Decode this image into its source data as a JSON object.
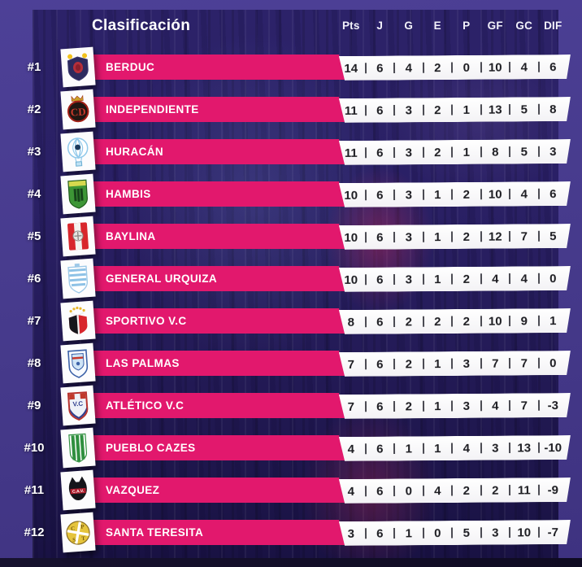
{
  "chart_data": {
    "type": "table",
    "title": "Clasificación",
    "columns": [
      "Pts",
      "J",
      "G",
      "E",
      "P",
      "GF",
      "GC",
      "DIF"
    ],
    "rows": [
      {
        "rank": "#1",
        "team": "BERDUC",
        "crest": "berduc",
        "values": [
          14,
          6,
          4,
          2,
          0,
          10,
          4,
          6
        ]
      },
      {
        "rank": "#2",
        "team": "INDEPENDIENTE",
        "crest": "independiente",
        "values": [
          11,
          6,
          3,
          2,
          1,
          13,
          5,
          8
        ]
      },
      {
        "rank": "#3",
        "team": "HURACÁN",
        "crest": "huracan",
        "values": [
          11,
          6,
          3,
          2,
          1,
          8,
          5,
          3
        ]
      },
      {
        "rank": "#4",
        "team": "HAMBIS",
        "crest": "hambis",
        "values": [
          10,
          6,
          3,
          1,
          2,
          10,
          4,
          6
        ]
      },
      {
        "rank": "#5",
        "team": "BAYLINA",
        "crest": "baylina",
        "values": [
          10,
          6,
          3,
          1,
          2,
          12,
          7,
          5
        ]
      },
      {
        "rank": "#6",
        "team": "GENERAL URQUIZA",
        "crest": "general-urquiza",
        "values": [
          10,
          6,
          3,
          1,
          2,
          4,
          4,
          0
        ]
      },
      {
        "rank": "#7",
        "team": "SPORTIVO V.C",
        "crest": "sportivo-vc",
        "values": [
          8,
          6,
          2,
          2,
          2,
          10,
          9,
          1
        ]
      },
      {
        "rank": "#8",
        "team": "LAS PALMAS",
        "crest": "las-palmas",
        "values": [
          7,
          6,
          2,
          1,
          3,
          7,
          7,
          0
        ]
      },
      {
        "rank": "#9",
        "team": "ATLÉTICO V.C",
        "crest": "atletico-vc",
        "values": [
          7,
          6,
          2,
          1,
          3,
          4,
          7,
          -3
        ]
      },
      {
        "rank": "#10",
        "team": "PUEBLO CAZES",
        "crest": "pueblo-cazes",
        "values": [
          4,
          6,
          1,
          1,
          4,
          3,
          13,
          -10
        ]
      },
      {
        "rank": "#11",
        "team": "VAZQUEZ",
        "crest": "vazquez",
        "values": [
          4,
          6,
          0,
          4,
          2,
          2,
          11,
          -9
        ]
      },
      {
        "rank": "#12",
        "team": "SANTA TERESITA",
        "crest": "santa-teresita",
        "values": [
          3,
          6,
          1,
          0,
          5,
          3,
          10,
          -7
        ]
      }
    ],
    "legend_position": "none",
    "grid": false
  },
  "colors": {
    "accent_pink": "#e2186d",
    "outer_background": "#473b8d",
    "panel_background": "#251d5e",
    "strip_background": "#ffffff",
    "stat_text": "#1d1d22",
    "header_text": "#ffffff"
  }
}
